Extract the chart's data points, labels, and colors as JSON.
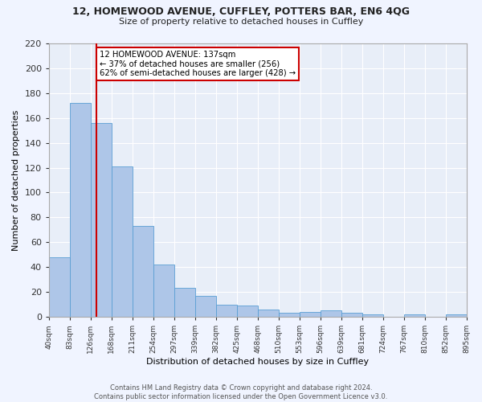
{
  "title1": "12, HOMEWOOD AVENUE, CUFFLEY, POTTERS BAR, EN6 4QG",
  "title2": "Size of property relative to detached houses in Cuffley",
  "xlabel": "Distribution of detached houses by size in Cuffley",
  "ylabel": "Number of detached properties",
  "categories": [
    "40sqm",
    "83sqm",
    "126sqm",
    "168sqm",
    "211sqm",
    "254sqm",
    "297sqm",
    "339sqm",
    "382sqm",
    "425sqm",
    "468sqm",
    "510sqm",
    "553sqm",
    "596sqm",
    "639sqm",
    "681sqm",
    "724sqm",
    "767sqm",
    "810sqm",
    "852sqm",
    "895sqm"
  ],
  "bar_heights": [
    48,
    172,
    156,
    121,
    73,
    42,
    23,
    17,
    10,
    9,
    6,
    3,
    4,
    5,
    3,
    2,
    0,
    2,
    0,
    2
  ],
  "annotation_text": "12 HOMEWOOD AVENUE: 137sqm\n← 37% of detached houses are smaller (256)\n62% of semi-detached houses are larger (428) →",
  "bar_color": "#aec6e8",
  "bar_edge_color": "#5a9fd4",
  "line_color": "#cc0000",
  "background_color": "#e8eef8",
  "grid_color": "#ffffff",
  "annotation_box_color": "#ffffff",
  "annotation_box_edge": "#cc0000",
  "footer": "Contains HM Land Registry data © Crown copyright and database right 2024.\nContains public sector information licensed under the Open Government Licence v3.0.",
  "ylim": [
    0,
    220
  ],
  "yticks": [
    0,
    20,
    40,
    60,
    80,
    100,
    120,
    140,
    160,
    180,
    200,
    220
  ],
  "fig_bg": "#f0f4ff"
}
